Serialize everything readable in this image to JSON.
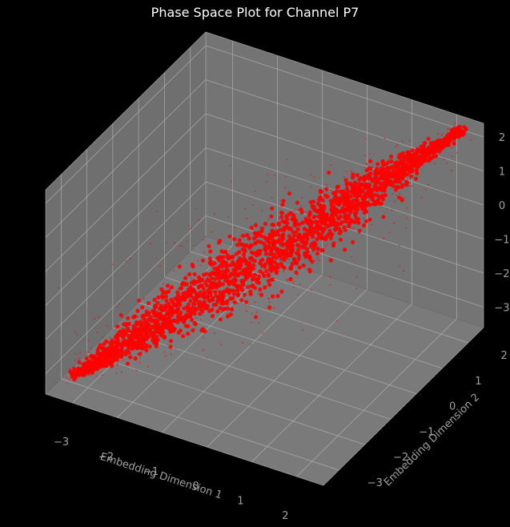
{
  "chart_data": {
    "type": "scatter",
    "projection": "3d",
    "title": "Phase Space Plot for Channel P7",
    "xlabel": "Embedding Dimension 1",
    "ylabel": "Embedding Dimension 2",
    "zlabel": "",
    "xlim": [
      -3.6,
      2.6
    ],
    "ylim": [
      -3.6,
      2.6
    ],
    "zlim": [
      -3.6,
      2.4
    ],
    "xticks": [
      -3,
      -2,
      -1,
      0,
      1,
      2
    ],
    "yticks": [
      -3,
      -2,
      -1,
      0,
      1,
      2
    ],
    "zticks": [
      -3,
      -2,
      -1,
      0,
      1,
      2
    ],
    "grid": true,
    "background": "#000000",
    "pane_color": "#6f6f6f",
    "point_color": "#ff0000",
    "trajectory": {
      "start": [
        -3.2,
        -3.2,
        -3.2
      ],
      "end": [
        2.3,
        2.3,
        2.3
      ],
      "spread_core": 0.35,
      "spread_outliers": 0.9
    }
  }
}
